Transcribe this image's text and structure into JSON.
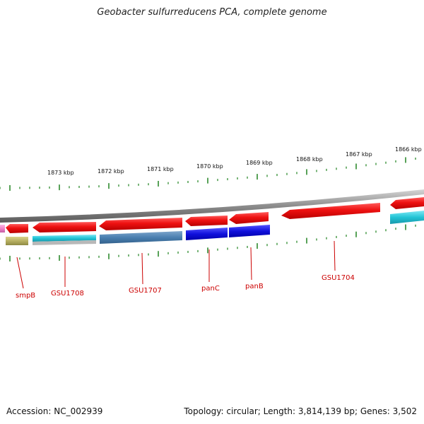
{
  "title": "Geobacter sulfurreducens PCA, complete genome",
  "footer": {
    "accession": "Accession: NC_002939",
    "topology": "Topology: circular; Length: 3,814,139 bp; Genes: 3,502"
  },
  "ruler": {
    "unit": "kbp",
    "labels": [
      "1873 kbp",
      "1872 kbp",
      "1871 kbp",
      "1870 kbp",
      "1869 kbp",
      "1868 kbp",
      "1867 kbp",
      "1866 kbp"
    ]
  },
  "gene_labels": [
    "smpB",
    "GSU1708",
    "GSU1707",
    "panC",
    "panB",
    "GSU1704"
  ],
  "colors": {
    "backbone": "#8c8c8c",
    "ruler_tick": "#2e8b2e",
    "gene_red": "#ee1111",
    "cog_cyan": "#22c4d6",
    "cog_steel": "#4a7fb0",
    "cog_blue": "#1010dd",
    "cog_olive": "#b7b062",
    "cog_pink": "#ee82c8",
    "label_red": "#cc0000"
  }
}
